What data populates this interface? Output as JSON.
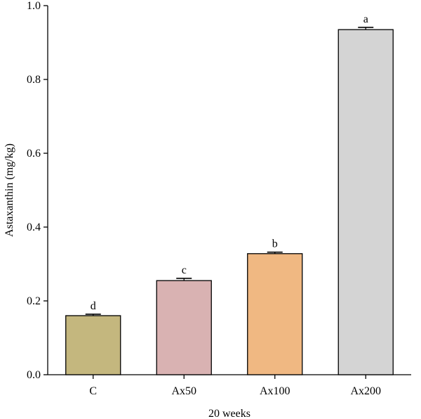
{
  "chart_data": {
    "type": "bar",
    "title": "",
    "xlabel": "20 weeks",
    "ylabel": "Astaxanthin (mg/kg)",
    "ylim": [
      0,
      1.0
    ],
    "yticks": [
      "0.0",
      "0.2",
      "0.4",
      "0.6",
      "0.8",
      "1.0"
    ],
    "categories": [
      "C",
      "Ax50",
      "Ax100",
      "Ax200"
    ],
    "values": [
      0.16,
      0.255,
      0.328,
      0.935
    ],
    "errors": [
      0.004,
      0.006,
      0.004,
      0.006
    ],
    "significance": [
      "d",
      "c",
      "b",
      "a"
    ],
    "colors": [
      "#c4b77e",
      "#d9b2b2",
      "#f0b882",
      "#d4d4d4"
    ],
    "grid": false,
    "legend": "none"
  }
}
